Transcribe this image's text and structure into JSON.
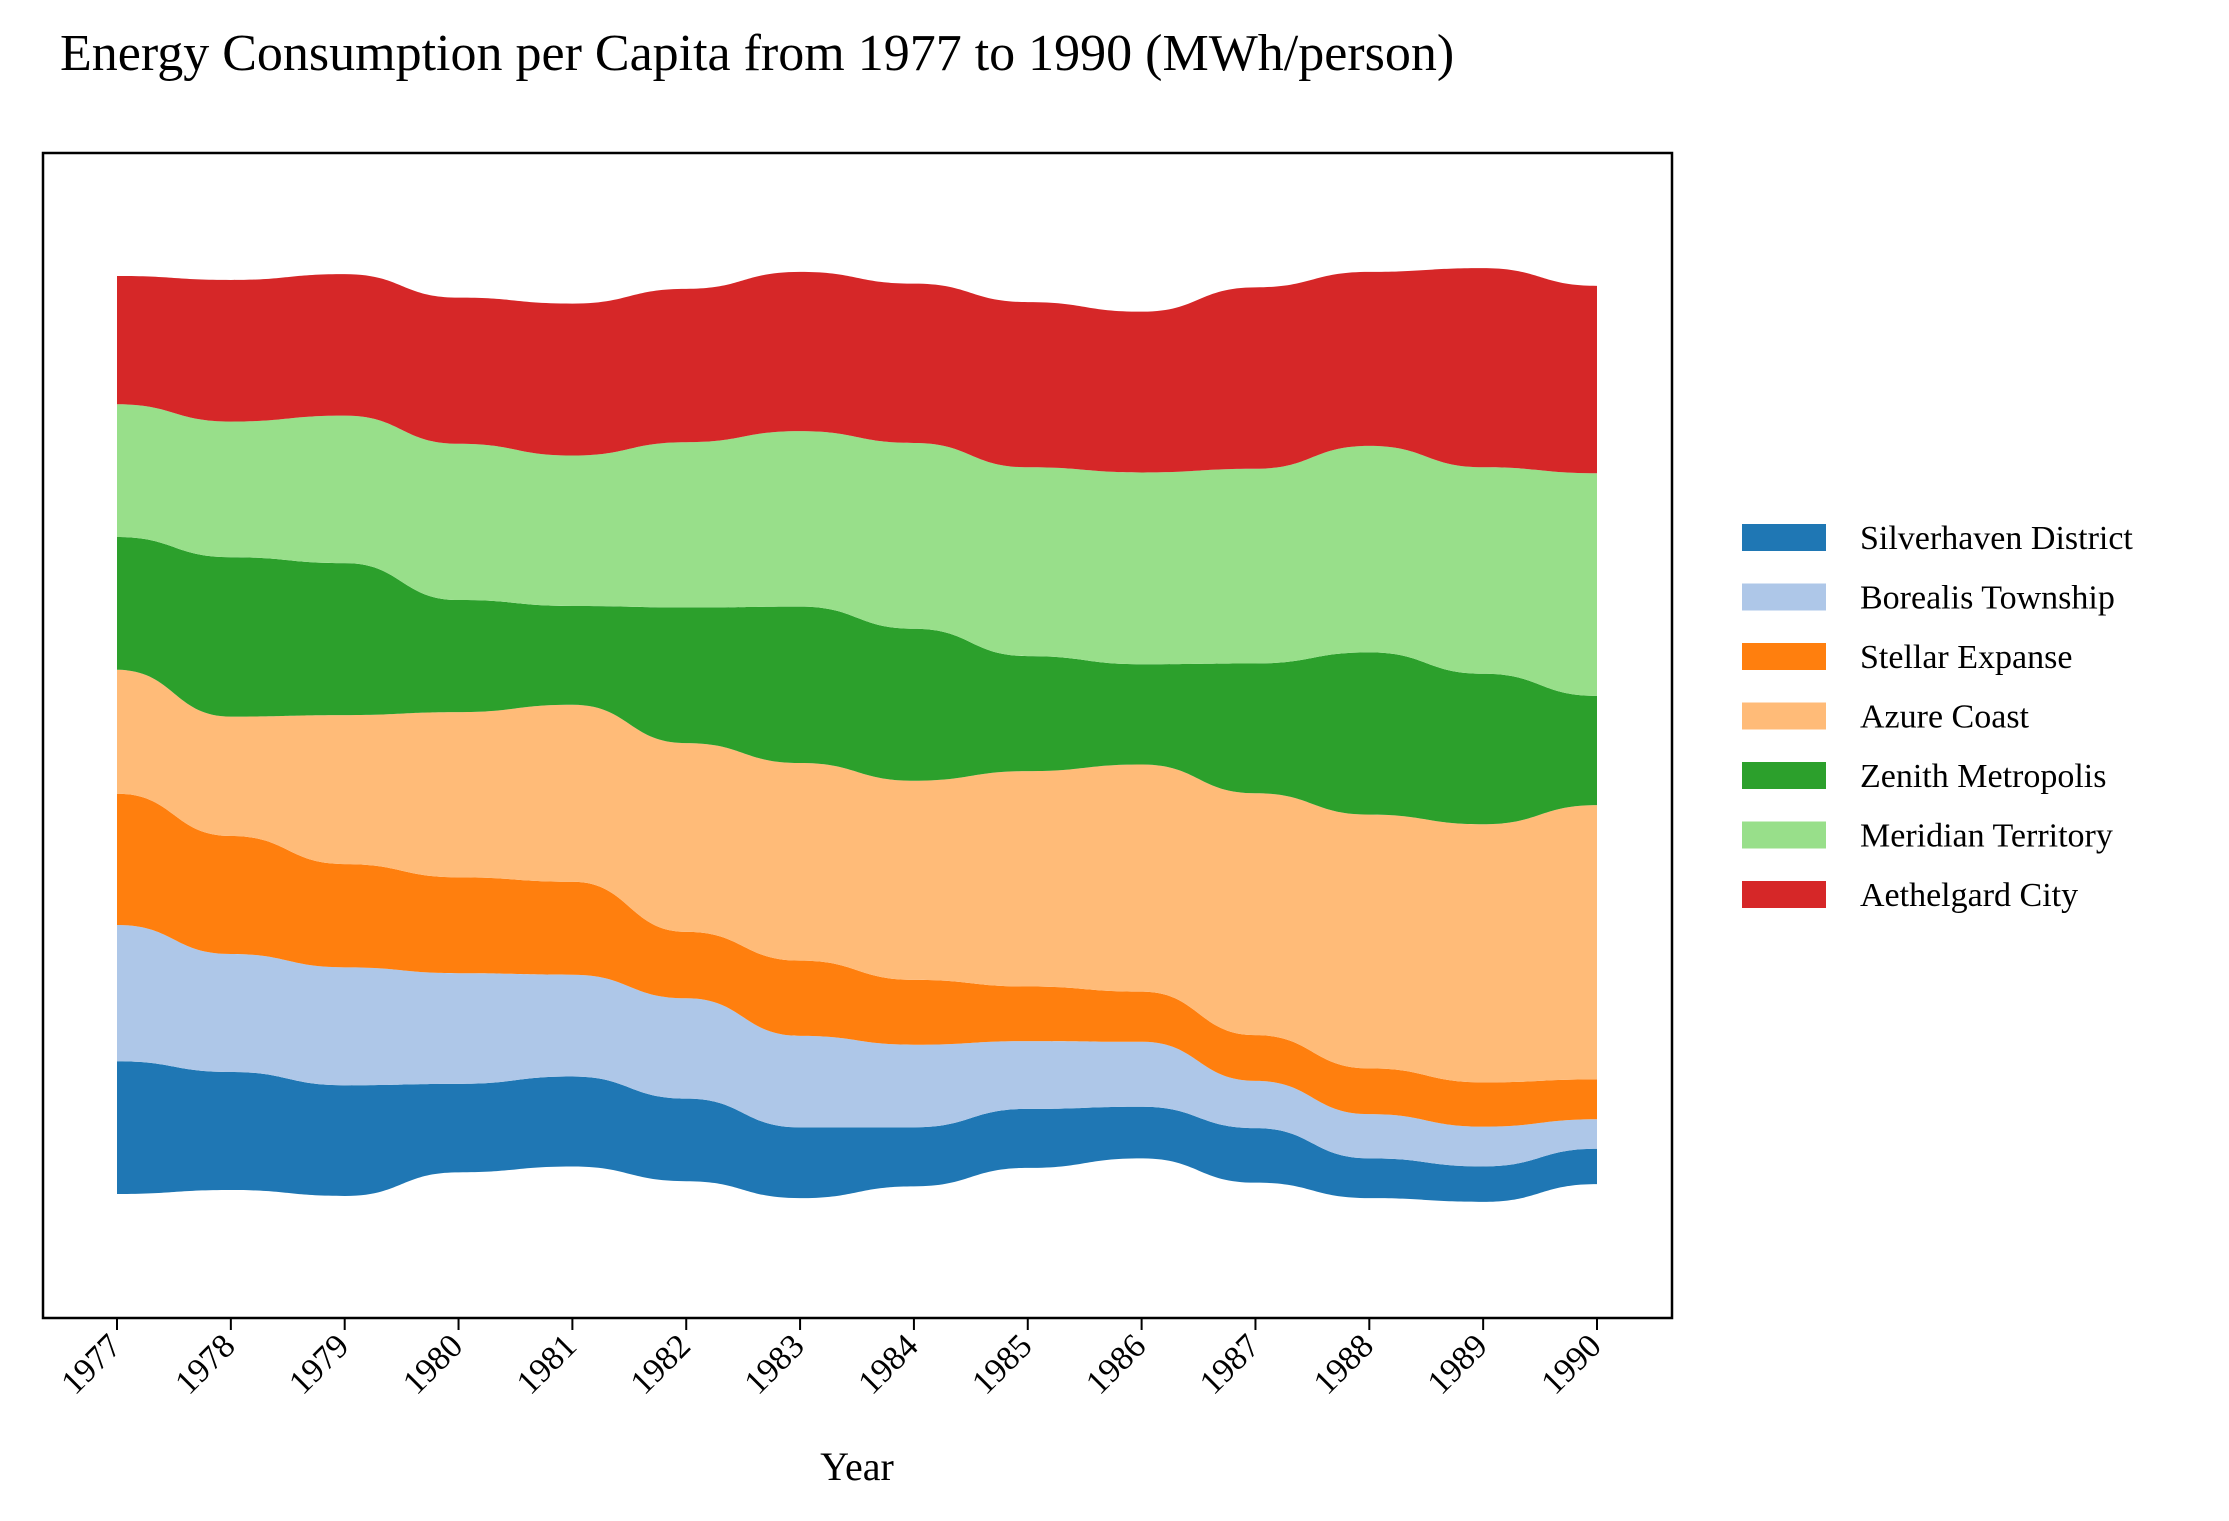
{
  "chart_data": {
    "type": "area",
    "subtype": "streamgraph",
    "title": "Energy Consumption per Capita from 1977 to 1990 (MWh/person)",
    "xlabel": "Year",
    "ylabel": "",
    "x": [
      "1977",
      "1978",
      "1979",
      "1980",
      "1981",
      "1982",
      "1983",
      "1984",
      "1985",
      "1986",
      "1987",
      "1988",
      "1989",
      "1990"
    ],
    "y_axis_visible": false,
    "grid": false,
    "legend_position": "right",
    "series": [
      {
        "name": "Silverhaven District",
        "color": "#1f77b4",
        "values": [
          4.5,
          4.0,
          3.75,
          3.0,
          3.05,
          2.8,
          2.4,
          2.0,
          2.0,
          1.75,
          1.85,
          1.35,
          1.2,
          1.2
        ]
      },
      {
        "name": "Borealis Township",
        "color": "#aec7e8",
        "values": [
          4.62,
          4.0,
          4.0,
          3.75,
          3.45,
          3.4,
          3.1,
          2.8,
          2.3,
          2.2,
          1.6,
          1.5,
          1.35,
          1.0
        ]
      },
      {
        "name": "Stellar Expanse",
        "color": "#ff7f0e",
        "values": [
          4.45,
          4.0,
          3.5,
          3.25,
          3.15,
          2.25,
          2.55,
          2.2,
          1.85,
          1.7,
          1.55,
          1.55,
          1.5,
          1.35
        ]
      },
      {
        "name": "Azure Coast",
        "color": "#ffbb78",
        "values": [
          4.2,
          4.05,
          5.05,
          5.6,
          6.0,
          6.4,
          6.7,
          6.75,
          7.3,
          7.7,
          8.2,
          8.6,
          8.75,
          9.3
        ]
      },
      {
        "name": "Zenith Metropolis",
        "color": "#2ca02c",
        "values": [
          4.5,
          5.4,
          5.15,
          3.8,
          3.35,
          4.6,
          5.3,
          5.15,
          3.9,
          3.4,
          4.4,
          5.5,
          5.1,
          3.7
        ]
      },
      {
        "name": "Meridian Territory",
        "color": "#98df8a",
        "values": [
          4.5,
          4.6,
          5.0,
          5.3,
          5.1,
          5.6,
          5.95,
          6.3,
          6.4,
          6.5,
          6.6,
          7.0,
          7.0,
          7.55
        ]
      },
      {
        "name": "Aethelgard City",
        "color": "#d62728",
        "values": [
          4.35,
          4.8,
          4.8,
          4.95,
          5.15,
          5.2,
          5.4,
          5.4,
          5.6,
          5.45,
          6.15,
          5.9,
          6.75,
          6.35
        ]
      }
    ]
  }
}
